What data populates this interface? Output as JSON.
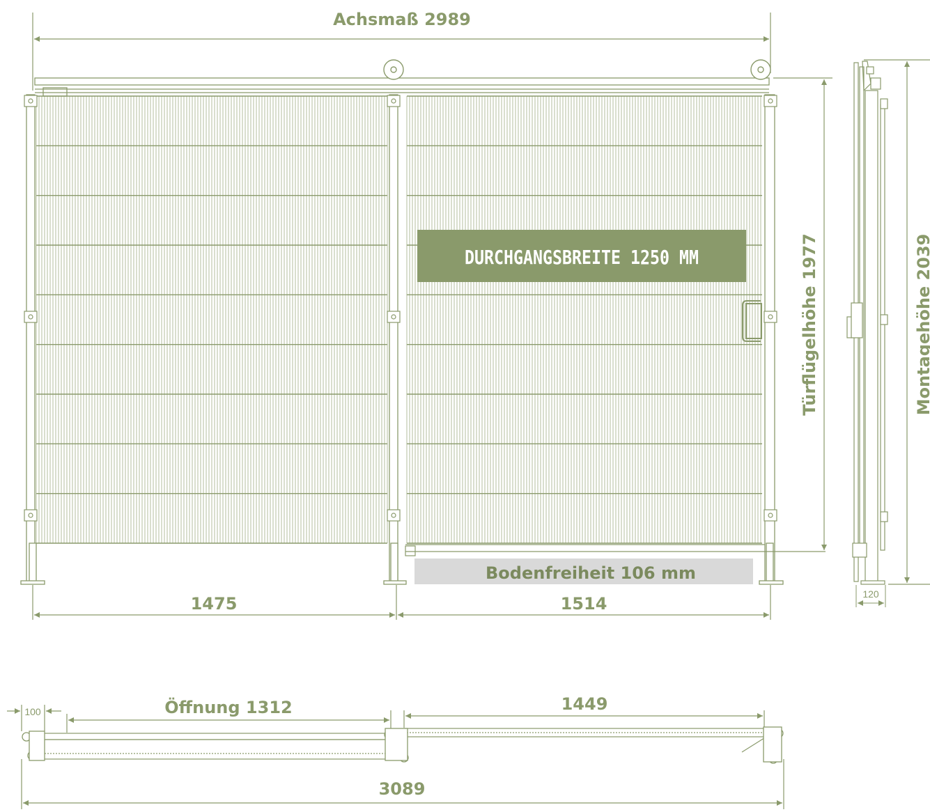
{
  "colors": {
    "line": "#8a9a6b",
    "accent": "#8a9a6b",
    "banner_bg": "#8a9a6b",
    "clearance_bg": "#d9d9d9",
    "mesh": "#b3bd9c"
  },
  "front_view": {
    "axis_dimension": "Achsmaß 2989",
    "left_width": "1475",
    "right_width": "1514",
    "passage_width": "DURCHGANGSBREITE 1250 MM",
    "ground_clearance": "Bodenfreiheit 106 mm",
    "leaf_height": "Türflügelhöhe 1977"
  },
  "side_view": {
    "mounting_height": "Montagehöhe 2039",
    "post_width": "120"
  },
  "top_view": {
    "offset": "100",
    "opening": "Öffnung 1312",
    "leaf_width": "1449",
    "total_width": "3089"
  }
}
